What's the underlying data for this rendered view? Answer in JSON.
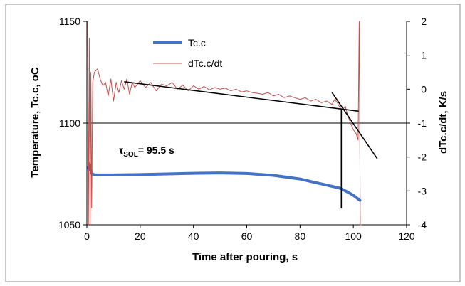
{
  "chart_data": {
    "type": "line",
    "xlabel": "Time after pouring, s",
    "ylabel": "Temperature, Tc.c, oC",
    "y2label": "dTc.c/dt, K/s",
    "xlim": [
      0,
      120
    ],
    "ylim": [
      1050,
      1150
    ],
    "y2lim": [
      -4,
      2
    ],
    "xticks": [
      "0",
      "20",
      "40",
      "60",
      "80",
      "100",
      "120"
    ],
    "yticks": [
      "1050",
      "1100",
      "1150"
    ],
    "y2ticks": [
      "-4",
      "-3",
      "-2",
      "-1",
      "0",
      "1",
      "2"
    ],
    "legend_position": "top-center",
    "colors": {
      "temperature": "#4472C4",
      "derivative": "#C0504D",
      "tangent": "#000000",
      "gridline": "#000000"
    },
    "series": [
      {
        "name": "Tc.c",
        "axis": "left",
        "x": [
          0.5,
          0.8,
          1.0,
          1.3,
          1.6,
          2.0,
          3,
          5,
          10,
          20,
          30,
          40,
          50,
          60,
          70,
          80,
          85,
          90,
          95,
          98,
          100,
          102.5
        ],
        "y": [
          1077,
          1079,
          1080,
          1078.5,
          1076.5,
          1075,
          1074.5,
          1074.5,
          1074.5,
          1074.7,
          1075,
          1075.3,
          1075.5,
          1075.2,
          1074.3,
          1072.5,
          1071,
          1069.5,
          1068,
          1066,
          1064.5,
          1062
        ]
      },
      {
        "name": "dTc.c/dt",
        "axis": "right",
        "x": [
          0.3,
          0.6,
          0.9,
          1.2,
          1.5,
          1.8,
          2.2,
          2.8,
          4,
          5,
          6,
          7,
          8,
          9,
          10,
          11,
          12,
          13,
          14,
          15,
          16,
          17,
          18,
          19,
          20,
          22,
          24,
          26,
          28,
          30,
          32,
          34,
          36,
          38,
          40,
          42,
          44,
          46,
          48,
          50,
          52,
          54,
          56,
          58,
          60,
          62,
          64,
          66,
          68,
          70,
          72,
          74,
          76,
          78,
          80,
          82,
          84,
          86,
          88,
          90,
          92,
          93,
          94,
          95,
          96,
          97,
          98,
          99,
          100,
          101,
          101.8,
          102.2,
          102.6,
          103
        ],
        "y": [
          2,
          -4,
          1.5,
          -4,
          0.5,
          -3.5,
          0.2,
          0.5,
          0.6,
          0.3,
          0.1,
          0.2,
          -0.2,
          0.3,
          -0.35,
          0.2,
          -0.1,
          0.25,
          0.0,
          0.3,
          -0.15,
          0.2,
          0.05,
          0.15,
          0.25,
          0.05,
          0.2,
          -0.05,
          0.15,
          0.1,
          0.2,
          0.0,
          0.12,
          -0.05,
          0.1,
          0.0,
          0.08,
          -0.02,
          0.05,
          0.0,
          0.03,
          -0.05,
          0.0,
          -0.08,
          -0.05,
          -0.1,
          -0.12,
          -0.15,
          -0.1,
          -0.2,
          -0.15,
          -0.25,
          -0.2,
          -0.25,
          -0.3,
          -0.25,
          -0.35,
          -0.3,
          -0.4,
          -0.35,
          -0.45,
          -0.3,
          -0.4,
          -0.55,
          -0.6,
          -0.5,
          -0.8,
          -1.0,
          -1.2,
          -1.3,
          -1.5,
          2.0,
          -4.0,
          -4.0
        ]
      }
    ],
    "annotations": [
      {
        "text_main": "τ",
        "text_sub": "SOL",
        "text_rest": "= 95.5 s",
        "x": 21,
        "y": 1080
      }
    ],
    "tangent_lines": [
      {
        "axis": "right",
        "x": [
          14,
          102
        ],
        "y": [
          0.22,
          -0.65
        ]
      },
      {
        "axis": "right",
        "x": [
          92,
          109
        ],
        "y": [
          -0.1,
          -2.05
        ]
      },
      {
        "axis": "left",
        "x": [
          95.5,
          95.5
        ],
        "y": [
          1058,
          1107
        ]
      }
    ],
    "hline": {
      "axis": "left",
      "y": 1100
    }
  }
}
